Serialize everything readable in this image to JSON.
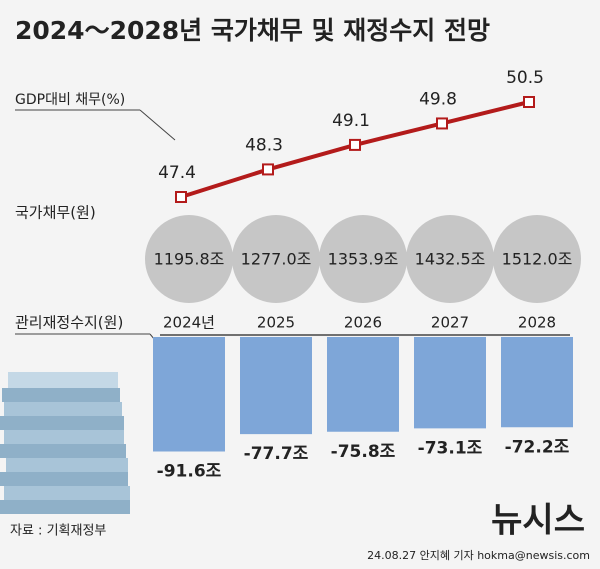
{
  "title": "2024～2028년 국가채무 및 재정수지 전망",
  "chart_data": [
    {
      "type": "line",
      "label": "GDP대비 채무(%)",
      "categories": [
        "2024년",
        "2025",
        "2026",
        "2027",
        "2028"
      ],
      "values": [
        47.4,
        48.3,
        49.1,
        49.8,
        50.5
      ],
      "color": "#b31b1b"
    },
    {
      "type": "circle",
      "label": "국가채무(원)",
      "values": [
        1195.8,
        1277.0,
        1353.9,
        1432.5,
        1512.0
      ],
      "value_labels": [
        "1195.8조",
        "1277.0조",
        "1353.9조",
        "1432.5조",
        "1512.0조"
      ],
      "color": "#c6c6c6"
    },
    {
      "type": "bar",
      "label": "관리재정수지(원)",
      "values": [
        -91.6,
        -77.7,
        -75.8,
        -73.1,
        -72.2
      ],
      "value_labels": [
        "-91.6조",
        "-77.7조",
        "-75.8조",
        "-73.1조",
        "-72.2조"
      ],
      "color": "#7ea6d8"
    }
  ],
  "source": "자료 : 기획재정부",
  "logo": "뉴시스",
  "credit": "24.08.27 안지혜 기자 hokma@newsis.com"
}
